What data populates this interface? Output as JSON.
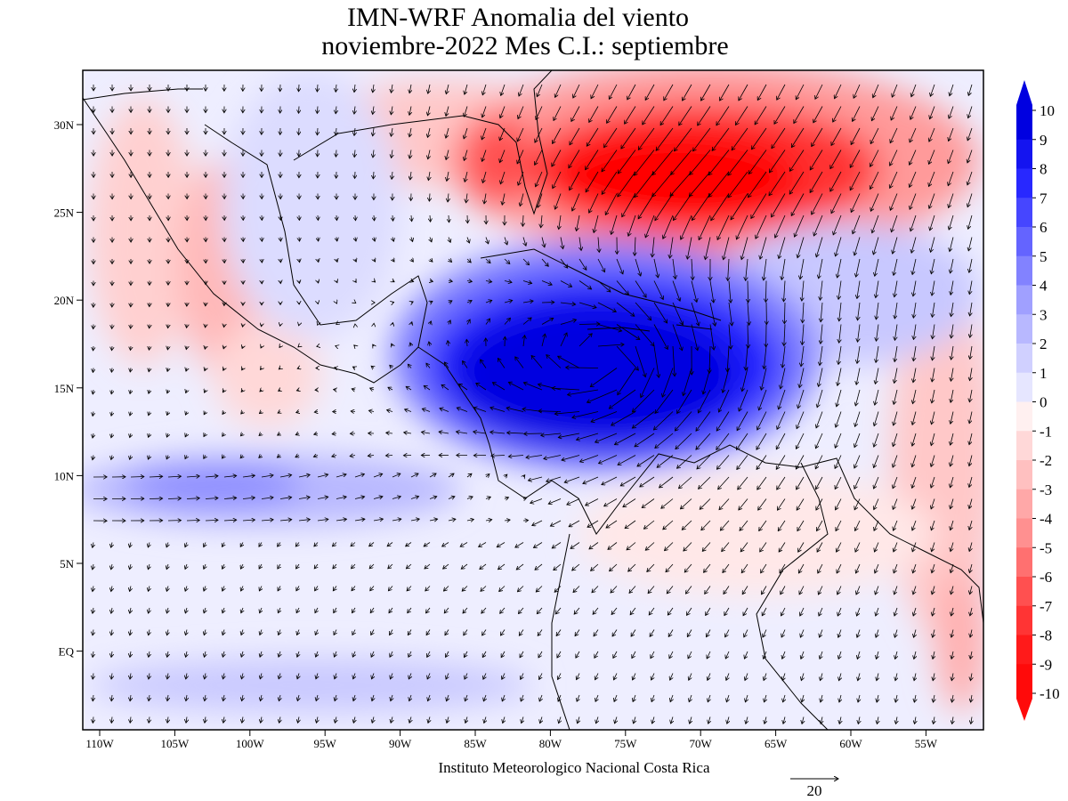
{
  "title": [
    "IMN-WRF Anomalia del viento",
    "noviembre-2022 Mes C.I.: septiembre"
  ],
  "longitude_labels": [
    "110W",
    "105W",
    "100W",
    "95W",
    "90W",
    "85W",
    "80W",
    "75W",
    "70W",
    "65W",
    "60W",
    "55W"
  ],
  "latitude_labels": [
    "30N",
    "25N",
    "20N",
    "15N",
    "10N",
    "5N",
    "EQ"
  ],
  "colorbar_labels": [
    "10",
    "9",
    "8",
    "7",
    "6",
    "5",
    "4",
    "3",
    "2",
    "1",
    "0",
    "-1",
    "-2",
    "-3",
    "-4",
    "-5",
    "-6",
    "-7",
    "-8",
    "-9",
    "-10"
  ],
  "footer": "Instituto Meteorologico Nacional Costa Rica",
  "vector_scale": "20"
}
